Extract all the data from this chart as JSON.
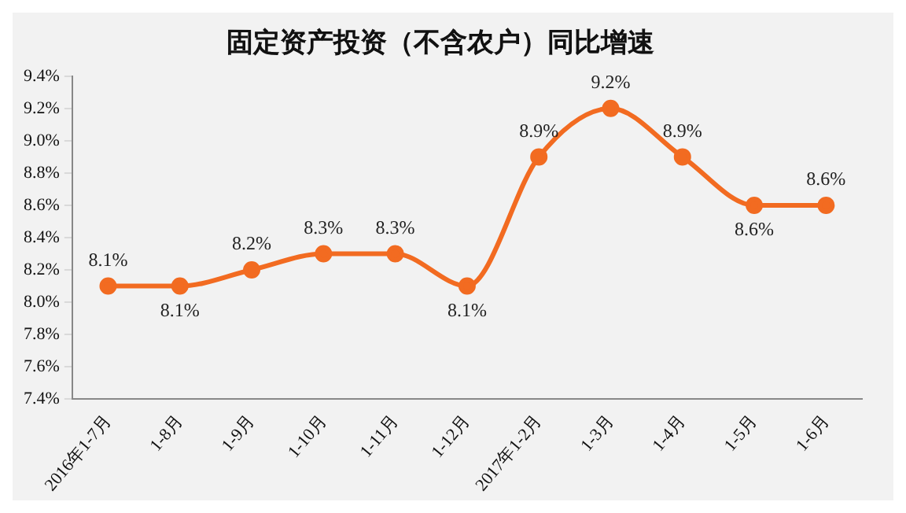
{
  "chart_data": {
    "type": "line",
    "title": "固定资产投资（不含农户）同比增速",
    "categories": [
      "2016年1-7月",
      "1-8月",
      "1-9月",
      "1-10月",
      "1-11月",
      "1-12月",
      "2017年1-2月",
      "1-3月",
      "1-4月",
      "1-5月",
      "1-6月"
    ],
    "series": [
      {
        "color": "#f26b21",
        "values": [
          8.1,
          8.1,
          8.2,
          8.3,
          8.3,
          8.1,
          8.9,
          9.2,
          8.9,
          8.6,
          8.6
        ],
        "value_labels": [
          "8.1%",
          "8.1%",
          "8.2%",
          "8.3%",
          "8.3%",
          "8.1%",
          "8.9%",
          "9.2%",
          "8.9%",
          "8.6%",
          "8.6%"
        ]
      }
    ],
    "ylim": [
      7.4,
      9.4
    ],
    "yticks": [
      {
        "value": 7.4,
        "label": "7.4%"
      },
      {
        "value": 7.6,
        "label": "7.6%"
      },
      {
        "value": 7.8,
        "label": "7.8%"
      },
      {
        "value": 8.0,
        "label": "8.0%"
      },
      {
        "value": 8.2,
        "label": "8.2%"
      },
      {
        "value": 8.4,
        "label": "8.4%"
      },
      {
        "value": 8.6,
        "label": "8.6%"
      },
      {
        "value": 8.8,
        "label": "8.8%"
      },
      {
        "value": 9.0,
        "label": "9.0%"
      },
      {
        "value": 9.2,
        "label": "9.2%"
      },
      {
        "value": 9.4,
        "label": "9.4%"
      }
    ],
    "marker": "circle",
    "legend": false,
    "grid": false
  }
}
